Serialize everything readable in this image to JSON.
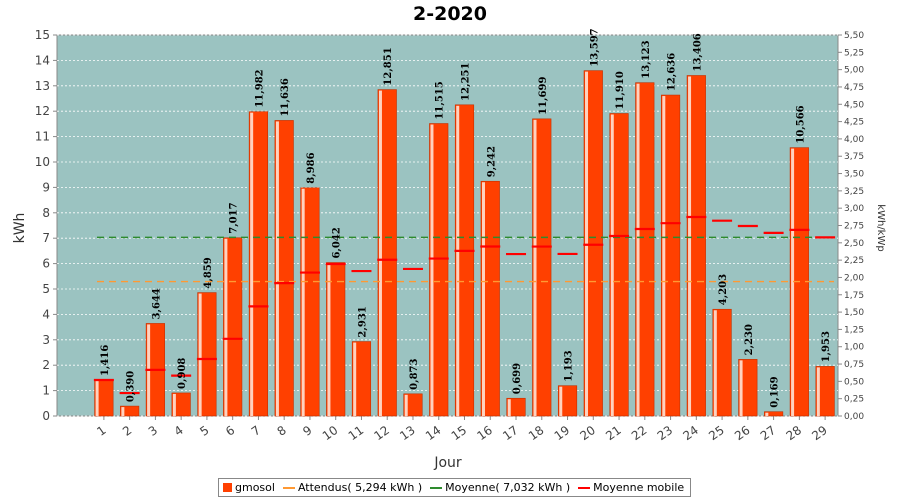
{
  "chart_data": {
    "type": "bar",
    "title": "2-2020",
    "xlabel": "Jour",
    "ylabel": "kWh",
    "y2label": "kWh/kWp",
    "ylim": [
      0,
      15
    ],
    "y2lim": [
      0,
      5.5
    ],
    "grid": true,
    "legend_position": "bottom",
    "categories": [
      "1",
      "2",
      "3",
      "4",
      "5",
      "6",
      "7",
      "8",
      "9",
      "10",
      "11",
      "12",
      "13",
      "14",
      "15",
      "16",
      "17",
      "18",
      "19",
      "20",
      "21",
      "22",
      "23",
      "24",
      "25",
      "26",
      "27",
      "28",
      "29"
    ],
    "series": [
      {
        "name": "gmosol",
        "kind": "bar",
        "color": "#ff4000",
        "values": [
          1.416,
          0.39,
          3.644,
          0.908,
          4.859,
          7.017,
          11.982,
          11.636,
          8.986,
          6.042,
          2.931,
          12.851,
          0.873,
          11.515,
          12.251,
          9.242,
          0.699,
          11.699,
          1.193,
          13.597,
          11.91,
          13.123,
          12.636,
          13.406,
          4.203,
          2.23,
          0.169,
          10.566,
          1.953
        ],
        "labels": [
          "1,416",
          "0,390",
          "3,644",
          "0,908",
          "4,859",
          "7,017",
          "11,982",
          "11,636",
          "8,986",
          "6,042",
          "2,931",
          "12,851",
          "0,873",
          "11,515",
          "12,251",
          "9,242",
          "0,699",
          "11,699",
          "1,193",
          "13,597",
          "11,910",
          "13,123",
          "12,636",
          "13,406",
          "4,203",
          "2,230",
          "0,169",
          "10,566",
          "1,953"
        ]
      },
      {
        "name": "Attendus( 5,294 kWh )",
        "kind": "dashed-line",
        "color": "#ff9933",
        "value": 5.294
      },
      {
        "name": "Moyenne( 7,032 kWh )",
        "kind": "dashed-line",
        "color": "#2e8b2e",
        "value": 7.032
      },
      {
        "name": "Moyenne mobile",
        "kind": "step-marks",
        "color": "#ff0000",
        "values": [
          1.416,
          0.903,
          1.817,
          1.59,
          2.243,
          3.039,
          4.317,
          5.231,
          5.647,
          5.985,
          5.707,
          6.151,
          5.789,
          6.198,
          6.502,
          6.672,
          6.375,
          6.67,
          6.381,
          6.742,
          7.088,
          7.362,
          7.591,
          7.834,
          7.69,
          7.48,
          7.209,
          7.328,
          7.032
        ]
      }
    ],
    "y_ticks": [
      "0",
      "1",
      "2",
      "3",
      "4",
      "5",
      "6",
      "7",
      "8",
      "9",
      "10",
      "11",
      "12",
      "13",
      "14",
      "15"
    ],
    "y2_ticks": [
      "0,00",
      "0,25",
      "0,50",
      "0,75",
      "1,00",
      "1,25",
      "1,50",
      "1,75",
      "2,00",
      "2,25",
      "2,50",
      "2,75",
      "3,00",
      "3,25",
      "3,50",
      "3,75",
      "4,00",
      "4,25",
      "4,50",
      "4,75",
      "5,00",
      "5,25",
      "5,50"
    ]
  },
  "colors": {
    "plot_background": "#9bc3c1",
    "grid": "#ffffff",
    "bar": "#ff4000",
    "bar_highlight": "#ffd2bf"
  }
}
